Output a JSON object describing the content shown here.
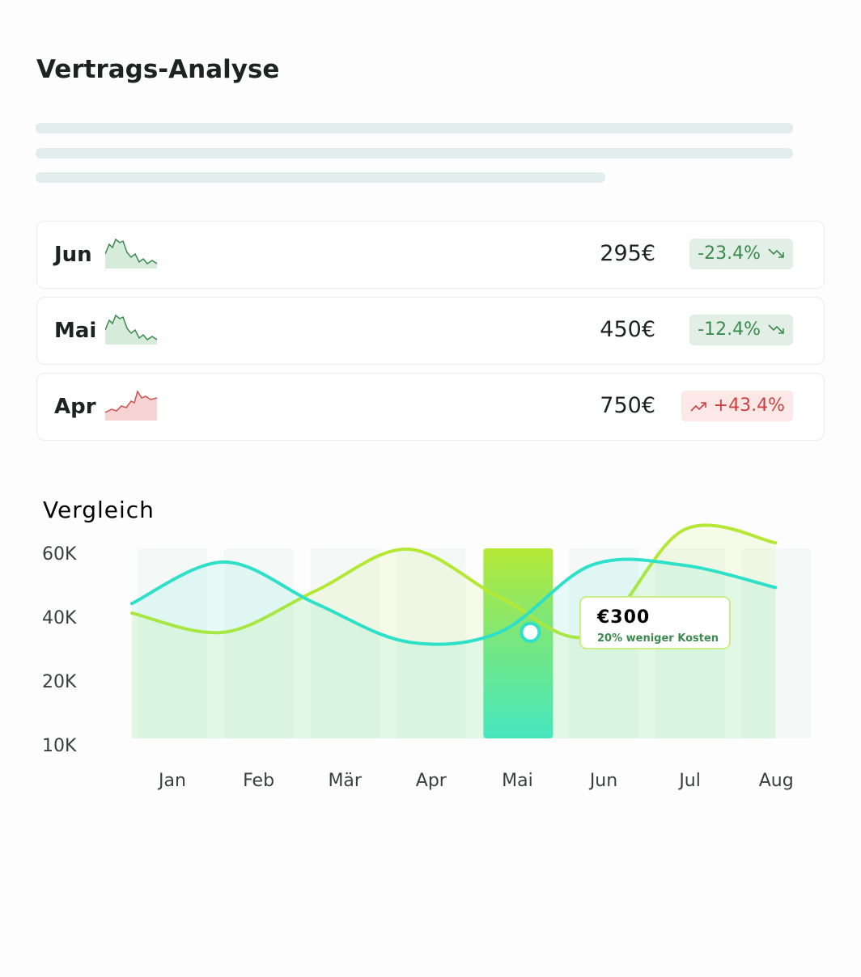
{
  "header": {
    "title": "Vertrags-Analyse"
  },
  "rows": [
    {
      "month": "Jun",
      "value": "295€",
      "change": "-23.4%",
      "trend": "down"
    },
    {
      "month": "Mai",
      "value": "450€",
      "change": "-12.4%",
      "trend": "down"
    },
    {
      "month": "Apr",
      "value": "750€",
      "change": "+43.4%",
      "trend": "up"
    }
  ],
  "chart_data": {
    "type": "line",
    "title": "Vergleich",
    "categories": [
      "Jan",
      "Feb",
      "Mär",
      "Apr",
      "Mai",
      "Jun",
      "Jul",
      "Aug"
    ],
    "series": [
      {
        "color": "#b5e835",
        "values": [
          41000,
          35000,
          48000,
          61000,
          46000,
          34000,
          67000,
          63000
        ]
      },
      {
        "color": "#2ee0c8",
        "values": [
          44000,
          57000,
          44000,
          32000,
          35000,
          56000,
          56000,
          49000
        ]
      }
    ],
    "yticks": [
      {
        "value": 60000,
        "label": "60K"
      },
      {
        "value": 40000,
        "label": "40K"
      },
      {
        "value": 20000,
        "label": "20K"
      },
      {
        "value": 10000,
        "label": "10K"
      }
    ],
    "highlight": "Mai",
    "annotation": {
      "title": "€300",
      "text": "20% weniger Kosten"
    }
  }
}
